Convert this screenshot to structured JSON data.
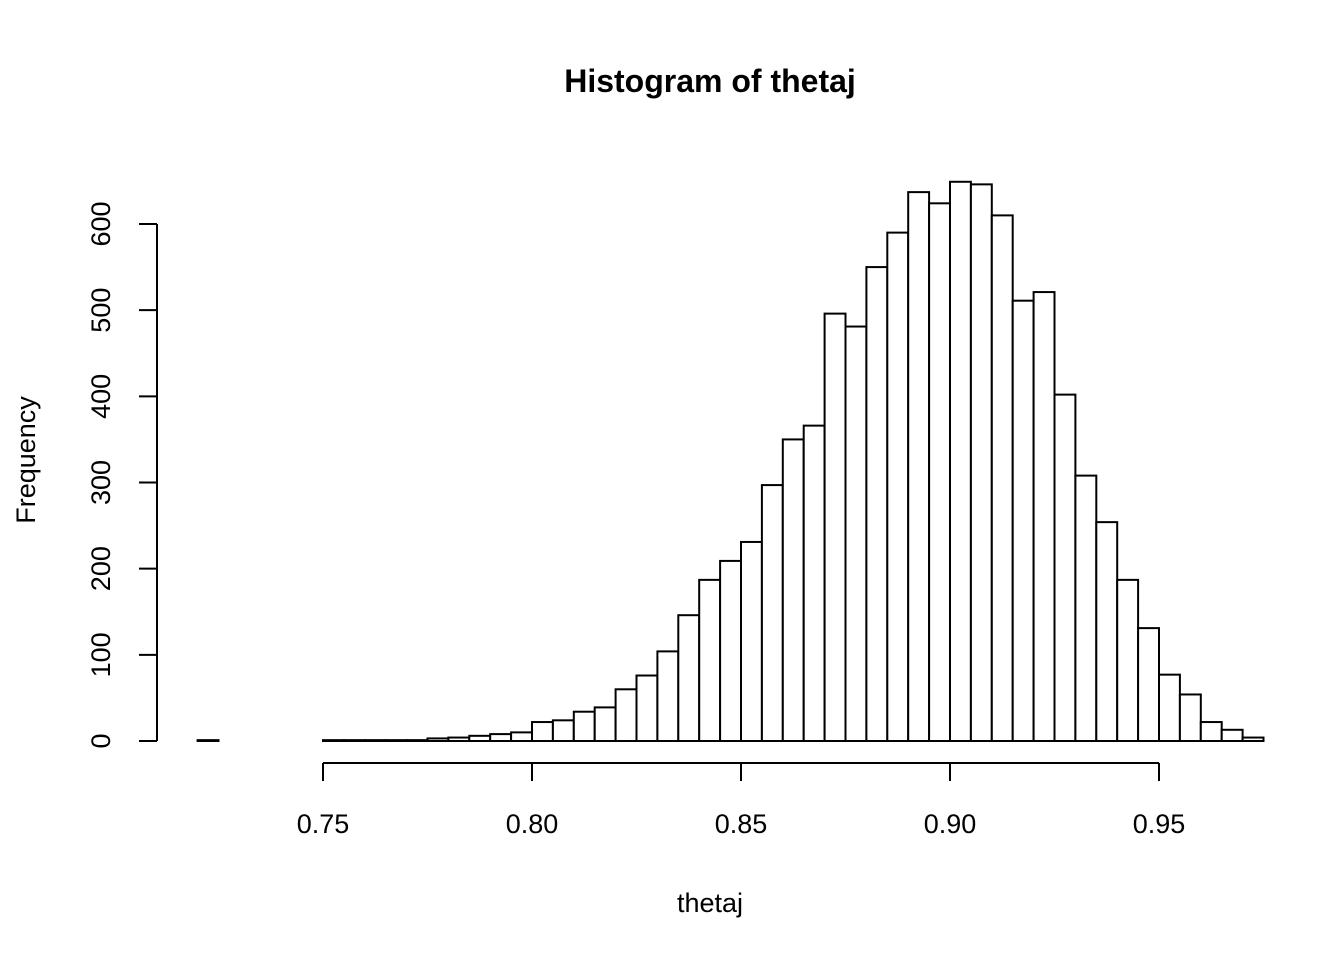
{
  "chart_data": {
    "type": "bar",
    "title": "Histogram of thetaj",
    "xlabel": "thetaj",
    "ylabel": "Frequency",
    "bin_width": 0.005,
    "bin_start": 0.72,
    "xlim": [
      0.75,
      0.95
    ],
    "ylim": [
      0,
      600
    ],
    "x_ticks": [
      "0.75",
      "0.80",
      "0.85",
      "0.90",
      "0.95"
    ],
    "y_ticks": [
      "0",
      "100",
      "200",
      "300",
      "400",
      "500",
      "600"
    ],
    "counts": [
      1,
      0,
      0,
      0,
      0,
      0,
      1,
      1,
      1,
      1,
      1,
      3,
      4,
      6,
      8,
      10,
      22,
      24,
      34,
      39,
      60,
      76,
      104,
      146,
      187,
      209,
      231,
      297,
      350,
      366,
      496,
      481,
      550,
      590,
      637,
      624,
      649,
      646,
      610,
      511,
      521,
      402,
      308,
      254,
      187,
      131,
      77,
      54,
      22,
      13,
      4
    ],
    "grid": false,
    "legend": "none"
  }
}
